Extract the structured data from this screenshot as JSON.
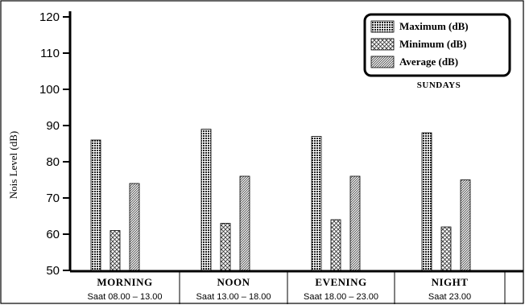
{
  "chart_data": {
    "type": "bar",
    "title": "",
    "ylabel": "Nois Level (dB)",
    "xlabel": "",
    "ylim": [
      50,
      120
    ],
    "yticks": [
      50,
      60,
      70,
      80,
      90,
      100,
      110,
      120
    ],
    "categories": [
      "MORNING",
      "NOON",
      "EVENING",
      "NIGHT"
    ],
    "category_sublabels": [
      "Saat 08.00 – 13.00",
      "Saat 13.00 – 18.00",
      "Saat 18.00 – 23.00",
      "Saat 23.00"
    ],
    "series": [
      {
        "name": "Maximum  (dB)",
        "values": [
          86,
          89,
          87,
          88
        ],
        "pattern": "dense-check"
      },
      {
        "name": "Minimum  (dB)",
        "values": [
          61,
          63,
          64,
          62
        ],
        "pattern": "crosshatch"
      },
      {
        "name": "Average   (dB)",
        "values": [
          74,
          76,
          76,
          75
        ],
        "pattern": "diagonal"
      }
    ],
    "annotation": "SUNDAYS",
    "legend_position": "top-right",
    "grid": false
  }
}
